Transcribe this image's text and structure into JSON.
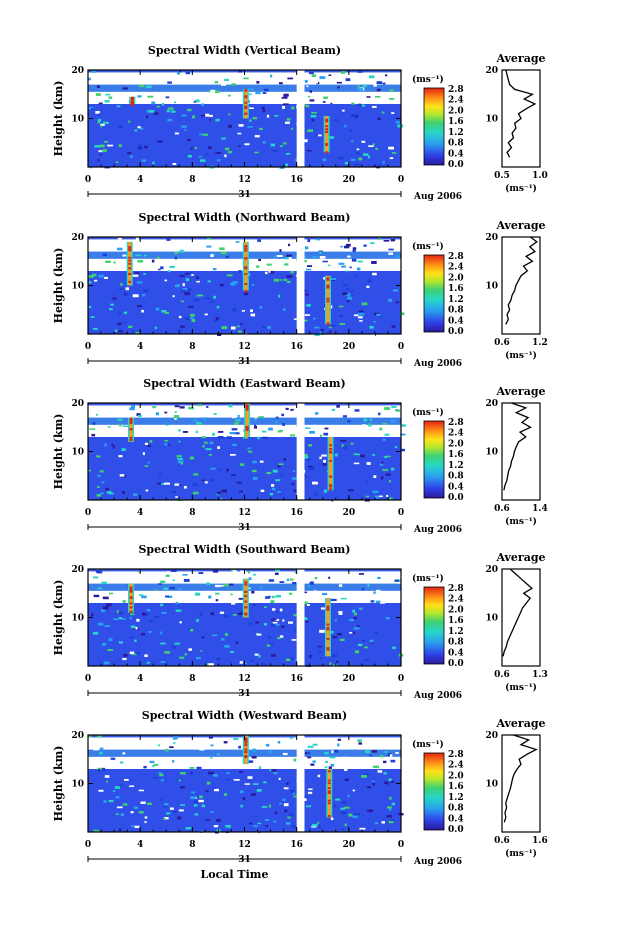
{
  "figure": {
    "date_label": "Aug 2006",
    "day_label": "31",
    "xlabel": "Local Time",
    "ylabel": "Height (km)",
    "avg_title": "Average",
    "unit_label": "(ms⁻¹)"
  },
  "chart_data": [
    {
      "type": "heatmap",
      "title": "Spectral Width (Vertical Beam)",
      "xlabel": "Local Time",
      "ylabel": "Height (km)",
      "x_ticks": [
        "0",
        "4",
        "8",
        "12",
        "16",
        "20",
        "0"
      ],
      "y_ticks": [
        "10",
        "20"
      ],
      "colorbar": {
        "label": "(ms⁻¹)",
        "ticks": [
          "0.0",
          "0.4",
          "0.8",
          "1.2",
          "1.6",
          "2.0",
          "2.4",
          "2.8"
        ]
      },
      "gap_hours": [
        16.0,
        16.6
      ],
      "spikes": [
        {
          "hour": 3.4,
          "low": 13,
          "high": 14.5
        },
        {
          "hour": 12.1,
          "low": 10,
          "high": 16
        },
        {
          "hour": 18.3,
          "low": 3,
          "high": 10.5
        }
      ],
      "profile": {
        "xlim": [
          0.5,
          1.1
        ],
        "x_ticks": [
          "0.5",
          "1.0"
        ],
        "ylim": [
          0,
          20
        ],
        "y_ticks": [
          "10",
          "20"
        ],
        "xlabel": "(ms⁻¹)",
        "height": [
          2,
          3,
          4,
          5,
          6,
          7,
          8,
          9,
          10,
          11,
          12,
          13,
          14,
          15,
          16,
          17,
          18,
          19,
          20
        ],
        "values": [
          0.62,
          0.58,
          0.65,
          0.6,
          0.68,
          0.66,
          0.72,
          0.7,
          0.8,
          0.76,
          0.88,
          1.02,
          0.85,
          0.98,
          0.7,
          0.62,
          0.6,
          0.58,
          0.56
        ]
      }
    },
    {
      "type": "heatmap",
      "title": "Spectral Width (Northward Beam)",
      "xlabel": "Local Time",
      "ylabel": "Height (km)",
      "x_ticks": [
        "0",
        "4",
        "8",
        "12",
        "16",
        "20",
        "0"
      ],
      "y_ticks": [
        "10",
        "20"
      ],
      "colorbar": {
        "label": "(ms⁻¹)",
        "ticks": [
          "0.0",
          "0.4",
          "0.8",
          "1.2",
          "1.6",
          "2.0",
          "2.4",
          "2.8"
        ]
      },
      "gap_hours": [
        16.0,
        16.6
      ],
      "spikes": [
        {
          "hour": 3.2,
          "low": 10,
          "high": 19
        },
        {
          "hour": 12.1,
          "low": 9,
          "high": 19
        },
        {
          "hour": 18.4,
          "low": 2,
          "high": 12
        }
      ],
      "profile": {
        "xlim": [
          0.6,
          1.2
        ],
        "x_ticks": [
          "0.6",
          "1.2"
        ],
        "ylim": [
          0,
          20
        ],
        "y_ticks": [
          "10",
          "20"
        ],
        "xlabel": "(ms⁻¹)",
        "height": [
          2,
          3,
          4,
          5,
          6,
          7,
          8,
          9,
          10,
          11,
          12,
          13,
          14,
          15,
          16,
          17,
          18,
          19,
          20
        ],
        "values": [
          0.66,
          0.7,
          0.68,
          0.72,
          0.7,
          0.74,
          0.76,
          0.8,
          0.82,
          0.86,
          0.9,
          1.0,
          0.94,
          1.08,
          0.98,
          1.12,
          1.04,
          1.15,
          1.05
        ]
      }
    },
    {
      "type": "heatmap",
      "title": "Spectral Width (Eastward Beam)",
      "xlabel": "Local Time",
      "ylabel": "Height (km)",
      "x_ticks": [
        "0",
        "4",
        "8",
        "12",
        "16",
        "20",
        "0"
      ],
      "y_ticks": [
        "10",
        "20"
      ],
      "colorbar": {
        "label": "(ms⁻¹)",
        "ticks": [
          "0.0",
          "0.4",
          "0.8",
          "1.2",
          "1.6",
          "2.0",
          "2.4",
          "2.8"
        ]
      },
      "gap_hours": [
        16.0,
        16.6
      ],
      "spikes": [
        {
          "hour": 3.3,
          "low": 12,
          "high": 17
        },
        {
          "hour": 12.2,
          "low": 13,
          "high": 20
        },
        {
          "hour": 18.6,
          "low": 2,
          "high": 13
        }
      ],
      "profile": {
        "xlim": [
          0.6,
          1.4
        ],
        "x_ticks": [
          "0.6",
          "1.4"
        ],
        "ylim": [
          0,
          20
        ],
        "y_ticks": [
          "10",
          "20"
        ],
        "xlabel": "(ms⁻¹)",
        "height": [
          2,
          3,
          4,
          5,
          6,
          7,
          8,
          9,
          10,
          11,
          12,
          13,
          14,
          15,
          16,
          17,
          18,
          19,
          20
        ],
        "values": [
          0.64,
          0.66,
          0.7,
          0.72,
          0.74,
          0.78,
          0.8,
          0.84,
          0.86,
          0.9,
          0.95,
          1.1,
          0.98,
          1.2,
          1.02,
          1.15,
          0.9,
          1.1,
          0.8
        ]
      }
    },
    {
      "type": "heatmap",
      "title": "Spectral Width (Southward Beam)",
      "xlabel": "Local Time",
      "ylabel": "Height (km)",
      "x_ticks": [
        "0",
        "4",
        "8",
        "12",
        "16",
        "20",
        "0"
      ],
      "y_ticks": [
        "10",
        "20"
      ],
      "colorbar": {
        "label": "(ms⁻¹)",
        "ticks": [
          "0.0",
          "0.4",
          "0.8",
          "1.2",
          "1.6",
          "2.0",
          "2.4",
          "2.8"
        ]
      },
      "gap_hours": [
        16.0,
        16.6
      ],
      "spikes": [
        {
          "hour": 3.3,
          "low": 11,
          "high": 17
        },
        {
          "hour": 12.1,
          "low": 10,
          "high": 18
        },
        {
          "hour": 18.4,
          "low": 2,
          "high": 14
        }
      ],
      "profile": {
        "xlim": [
          0.6,
          1.3
        ],
        "x_ticks": [
          "0.6",
          "1.3"
        ],
        "ylim": [
          0,
          20
        ],
        "y_ticks": [
          "10",
          "20"
        ],
        "xlabel": "(ms⁻¹)",
        "height": [
          2,
          3,
          4,
          5,
          6,
          7,
          8,
          9,
          10,
          11,
          12,
          13,
          14,
          15,
          16,
          17,
          18,
          19,
          20
        ],
        "values": [
          0.62,
          0.64,
          0.68,
          0.7,
          0.74,
          0.78,
          0.82,
          0.86,
          0.9,
          0.94,
          0.98,
          1.05,
          1.12,
          1.0,
          1.15,
          1.05,
          0.95,
          0.85,
          0.75
        ]
      }
    },
    {
      "type": "heatmap",
      "title": "Spectral Width (Westward Beam)",
      "xlabel": "Local Time",
      "ylabel": "Height (km)",
      "x_ticks": [
        "0",
        "4",
        "8",
        "12",
        "16",
        "20",
        "0"
      ],
      "y_ticks": [
        "10",
        "20"
      ],
      "colorbar": {
        "label": "(ms⁻¹)",
        "ticks": [
          "0.0",
          "0.4",
          "0.8",
          "1.2",
          "1.6",
          "2.0",
          "2.4",
          "2.8"
        ]
      },
      "gap_hours": [
        16.0,
        16.6
      ],
      "spikes": [
        {
          "hour": 12.1,
          "low": 14,
          "high": 20
        },
        {
          "hour": 18.5,
          "low": 3,
          "high": 13
        }
      ],
      "profile": {
        "xlim": [
          0.6,
          1.6
        ],
        "x_ticks": [
          "0.6",
          "1.6"
        ],
        "ylim": [
          0,
          20
        ],
        "y_ticks": [
          "10",
          "20"
        ],
        "xlabel": "(ms⁻¹)",
        "height": [
          2,
          3,
          4,
          5,
          6,
          7,
          8,
          9,
          10,
          11,
          12,
          13,
          14,
          15,
          16,
          17,
          18,
          19,
          20
        ],
        "values": [
          0.66,
          0.7,
          0.68,
          0.72,
          0.7,
          0.74,
          0.78,
          0.82,
          0.85,
          0.88,
          0.92,
          1.0,
          1.1,
          1.05,
          1.25,
          1.5,
          1.1,
          1.3,
          0.9
        ]
      }
    }
  ]
}
